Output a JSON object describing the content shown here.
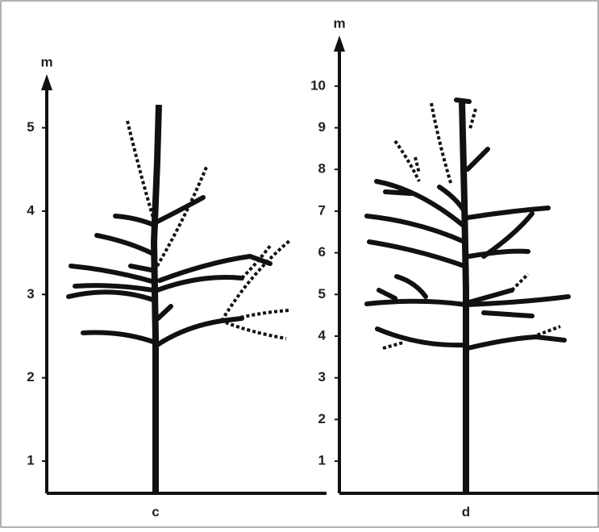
{
  "panels": [
    {
      "unit": "m",
      "yticks": [
        1,
        2,
        3,
        4,
        5
      ],
      "label": "c"
    },
    {
      "unit": "m",
      "yticks": [
        1,
        2,
        3,
        4,
        5,
        6,
        7,
        8,
        9,
        10
      ],
      "label": "d"
    }
  ]
}
